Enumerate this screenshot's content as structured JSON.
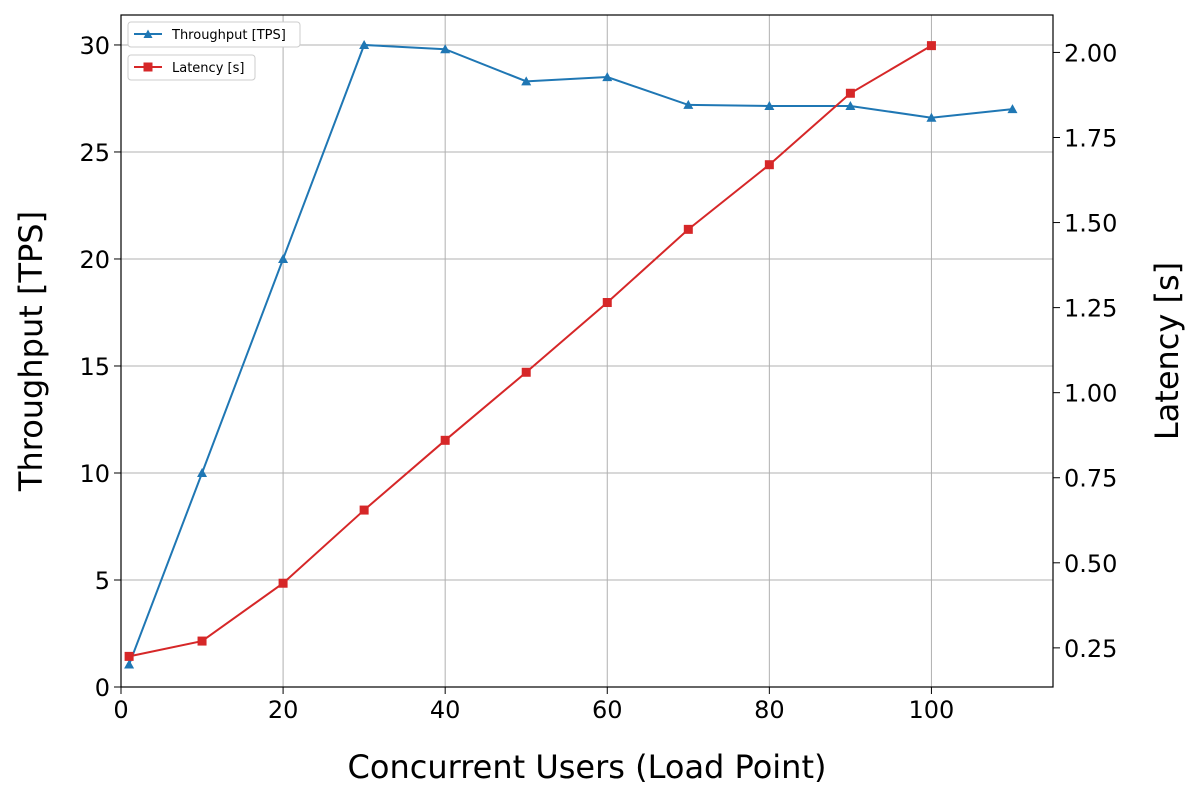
{
  "chart_data": {
    "type": "line",
    "xlabel": "Concurrent Users (Load Point)",
    "ylabel_left": "Throughput [TPS]",
    "ylabel_right": "Latency [s]",
    "xlim": [
      0,
      115
    ],
    "ylim_left": [
      0,
      31.4
    ],
    "ylim_right": [
      0.135,
      2.11
    ],
    "x_ticks": [
      0,
      20,
      40,
      60,
      80,
      100
    ],
    "y_left_ticks": [
      0,
      5,
      10,
      15,
      20,
      25,
      30
    ],
    "y_right_ticks": [
      0.25,
      0.5,
      0.75,
      1.0,
      1.25,
      1.5,
      1.75,
      2.0
    ],
    "x_tick_labels": [
      "0",
      "20",
      "40",
      "60",
      "80",
      "100"
    ],
    "y_left_tick_labels": [
      "0",
      "5",
      "10",
      "15",
      "20",
      "25",
      "30"
    ],
    "y_right_tick_labels": [
      "0.25",
      "0.50",
      "0.75",
      "1.00",
      "1.25",
      "1.50",
      "1.75",
      "2.00"
    ],
    "grid": true,
    "legend_placement": "top-left",
    "series": [
      {
        "name": "Throughput [TPS]",
        "axis": "left",
        "color": "#1f77b4",
        "marker": "triangle",
        "x": [
          1,
          10,
          20,
          30,
          40,
          50,
          60,
          70,
          80,
          90,
          100,
          110
        ],
        "values": [
          1.05,
          10.0,
          20.0,
          30.0,
          29.8,
          28.3,
          28.5,
          27.2,
          27.15,
          27.15,
          26.6,
          27.0
        ]
      },
      {
        "name": "Latency [s]",
        "axis": "right",
        "color": "#d62728",
        "marker": "square",
        "x": [
          1,
          10,
          20,
          30,
          40,
          50,
          60,
          70,
          80,
          90,
          100
        ],
        "values": [
          0.225,
          0.27,
          0.44,
          0.655,
          0.86,
          1.06,
          1.265,
          1.48,
          1.67,
          1.88,
          2.02
        ]
      }
    ]
  }
}
